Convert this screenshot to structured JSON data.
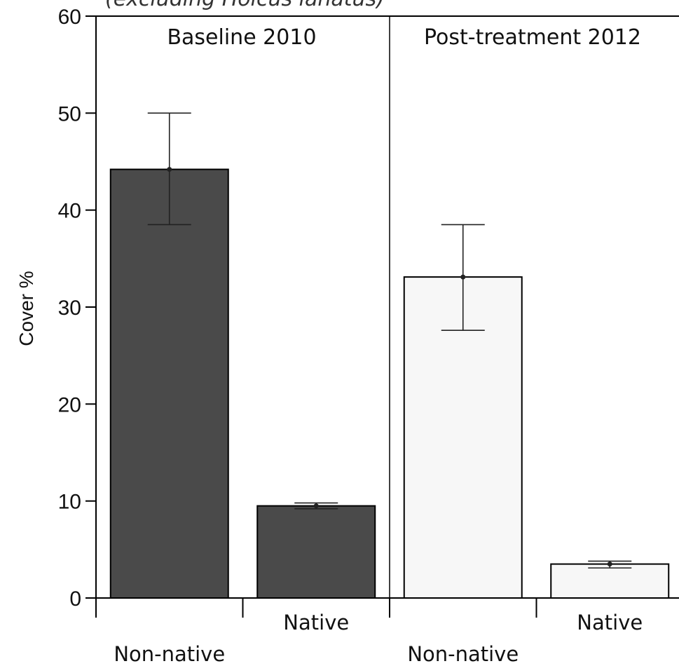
{
  "chart_data": {
    "type": "bar",
    "title": "(excluding Holcus lanatus)",
    "ylabel": "Cover %",
    "xlabel": "",
    "ylim": [
      0,
      60
    ],
    "yticks": [
      0,
      10,
      20,
      30,
      40,
      50,
      60
    ],
    "grid": false,
    "legend": "none",
    "panels": [
      {
        "title": "Baseline 2010",
        "categories": [
          "Non-native",
          "Native"
        ],
        "values": [
          44.2,
          9.5
        ],
        "error_low": [
          38.5,
          9.2
        ],
        "error_high": [
          50.0,
          9.8
        ],
        "color": "#4a4a4a"
      },
      {
        "title": "Post-treatment 2012",
        "categories": [
          "Non-native",
          "Native"
        ],
        "values": [
          33.1,
          3.5
        ],
        "error_low": [
          27.6,
          3.1
        ],
        "error_high": [
          38.5,
          3.8
        ],
        "color": "#f7f7f7"
      }
    ]
  }
}
